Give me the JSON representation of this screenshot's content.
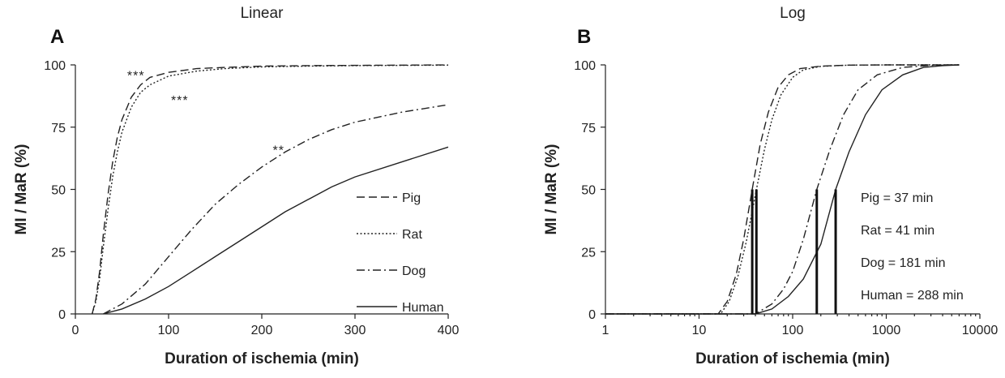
{
  "chart_data": [
    {
      "type": "line",
      "panel": "A",
      "title": "Linear",
      "xlabel": "Duration of ischemia (min)",
      "ylabel": "MI / MaR (%)",
      "xscale": "linear",
      "xlim": [
        0,
        400
      ],
      "ylim": [
        0,
        100
      ],
      "xticks": [
        "0",
        "100",
        "200",
        "300",
        "400"
      ],
      "yticks": [
        "0",
        "25",
        "50",
        "75",
        "100"
      ],
      "grid": false,
      "legend_placement": "lower-right",
      "series": [
        {
          "name": "Pig",
          "dash": "dash",
          "x": [
            18,
            22,
            26,
            30,
            35,
            40,
            45,
            50,
            60,
            70,
            80,
            100,
            130,
            160,
            200,
            250,
            300,
            350,
            400
          ],
          "y": [
            0,
            6,
            17,
            32,
            48,
            61,
            71,
            78,
            87,
            92,
            95,
            97,
            98.5,
            99,
            99.5,
            99.7,
            99.8,
            99.9,
            100
          ]
        },
        {
          "name": "Rat",
          "dash": "dot",
          "x": [
            18,
            22,
            26,
            30,
            35,
            40,
            45,
            50,
            60,
            70,
            80,
            100,
            130,
            160,
            200,
            250,
            300,
            350,
            400
          ],
          "y": [
            0,
            5,
            14,
            27,
            42,
            55,
            65,
            73,
            83,
            89,
            92,
            95.5,
            97.5,
            98.5,
            99.2,
            99.5,
            99.7,
            99.8,
            99.9
          ]
        },
        {
          "name": "Dog",
          "dash": "dashdot",
          "x": [
            30,
            50,
            75,
            100,
            125,
            150,
            175,
            200,
            225,
            250,
            275,
            300,
            350,
            400
          ],
          "y": [
            0,
            4,
            12,
            23,
            34,
            44,
            52,
            59,
            65,
            70,
            74,
            77,
            81,
            84
          ]
        },
        {
          "name": "Human",
          "dash": "solid",
          "x": [
            30,
            50,
            75,
            100,
            125,
            150,
            175,
            200,
            225,
            250,
            275,
            300,
            350,
            400
          ],
          "y": [
            0,
            2,
            6,
            11,
            17,
            23,
            29,
            35,
            41,
            46,
            51,
            55,
            61,
            67
          ]
        }
      ],
      "annotations": [
        {
          "text": "***",
          "x": 65,
          "y": 96
        },
        {
          "text": "***",
          "x": 112,
          "y": 86
        },
        {
          "text": "**",
          "x": 218,
          "y": 66
        }
      ]
    },
    {
      "type": "line",
      "panel": "B",
      "title": "Log",
      "xlabel": "Duration of ischemia (min)",
      "ylabel": "MI / MaR (%)",
      "xscale": "log",
      "xlim": [
        1,
        10000
      ],
      "ylim": [
        0,
        100
      ],
      "xticks": [
        "1",
        "10",
        "100",
        "1000",
        "10000"
      ],
      "yticks": [
        "0",
        "25",
        "50",
        "75",
        "100"
      ],
      "grid": false,
      "series": [
        {
          "name": "Pig",
          "dash": "dash",
          "x": [
            1,
            10,
            16,
            20,
            25,
            30,
            37,
            45,
            55,
            70,
            90,
            120,
            200,
            400,
            1000,
            6000
          ],
          "y": [
            0,
            0,
            0,
            5,
            16,
            30,
            50,
            68,
            81,
            91,
            96,
            98.5,
            99.5,
            99.9,
            100,
            100
          ]
        },
        {
          "name": "Rat",
          "dash": "dot",
          "x": [
            1,
            10,
            17,
            21,
            26,
            32,
            41,
            50,
            60,
            75,
            100,
            130,
            200,
            400,
            1000,
            6000
          ],
          "y": [
            0,
            0,
            0,
            5,
            15,
            29,
            50,
            66,
            78,
            88,
            95,
            98,
            99.4,
            99.9,
            100,
            100
          ]
        },
        {
          "name": "Dog",
          "dash": "dashdot",
          "x": [
            1,
            10,
            40,
            60,
            80,
            100,
            130,
            181,
            250,
            350,
            500,
            800,
            1500,
            3000,
            6000
          ],
          "y": [
            0,
            0,
            0,
            4,
            10,
            17,
            30,
            50,
            66,
            80,
            90,
            96,
            99,
            99.8,
            100
          ]
        },
        {
          "name": "Human",
          "dash": "solid",
          "x": [
            1,
            10,
            40,
            60,
            90,
            130,
            200,
            288,
            400,
            600,
            900,
            1500,
            2500,
            4000,
            6000
          ],
          "y": [
            0,
            0,
            0,
            2,
            7,
            14,
            28,
            50,
            65,
            80,
            90,
            96,
            99,
            99.7,
            100
          ]
        }
      ],
      "markers": [
        {
          "x": 37,
          "y": 50
        },
        {
          "x": 41,
          "y": 50
        },
        {
          "x": 181,
          "y": 50
        },
        {
          "x": 288,
          "y": 50
        }
      ],
      "legend_text": [
        "Pig = 37 min",
        "Rat = 41 min",
        "Dog = 181 min",
        "Human = 288 min"
      ]
    }
  ]
}
